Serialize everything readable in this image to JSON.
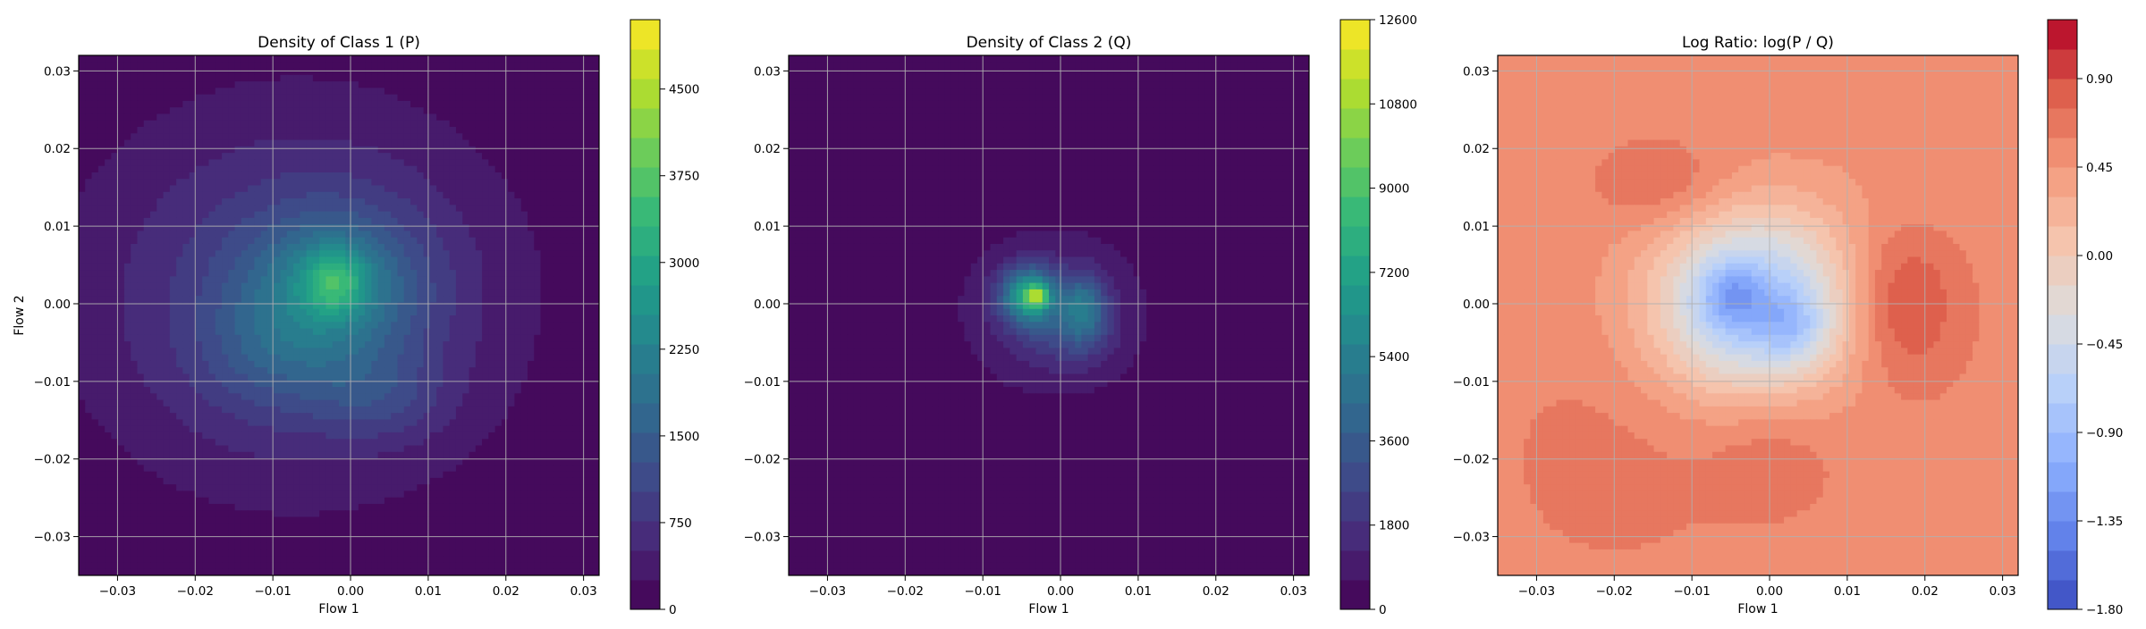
{
  "chart_data": [
    {
      "type": "heatmap",
      "title": "Density of Class 1 (P)",
      "xlabel": "Flow 1",
      "ylabel": "Flow 2",
      "xlim": [
        -0.035,
        0.032
      ],
      "ylim": [
        -0.035,
        0.032
      ],
      "xticks": [
        "−0.03",
        "−0.02",
        "−0.01",
        "0.00",
        "0.01",
        "0.02",
        "0.03"
      ],
      "yticks": [
        "−0.03",
        "−0.02",
        "−0.01",
        "0.00",
        "0.01",
        "0.02",
        "0.03"
      ],
      "grid": true,
      "colormap": "viridis",
      "colorbar": {
        "min": 0,
        "max": 5100,
        "ticks": [
          "0",
          "750",
          "1500",
          "2250",
          "3000",
          "3750",
          "4500"
        ]
      },
      "blobs": [
        {
          "x": -0.007,
          "y": 0.001,
          "sx": 0.019,
          "sy": 0.017,
          "w": 1000
        },
        {
          "x": -0.002,
          "y": 0.002,
          "sx": 0.008,
          "sy": 0.007,
          "w": 1300
        },
        {
          "x": 0.004,
          "y": -0.012,
          "sx": 0.006,
          "sy": 0.004,
          "w": 500
        },
        {
          "x": -0.01,
          "y": -0.006,
          "sx": 0.007,
          "sy": 0.006,
          "w": 500
        },
        {
          "x": -0.002,
          "y": 0.003,
          "sx": 0.003,
          "sy": 0.003,
          "w": 1300
        }
      ]
    },
    {
      "type": "heatmap",
      "title": "Density of Class 2 (Q)",
      "xlabel": "Flow 1",
      "ylabel": "",
      "xlim": [
        -0.035,
        0.032
      ],
      "ylim": [
        -0.035,
        0.032
      ],
      "xticks": [
        "−0.03",
        "−0.02",
        "−0.01",
        "0.00",
        "0.01",
        "0.02",
        "0.03"
      ],
      "yticks": [
        "−0.03",
        "−0.02",
        "−0.01",
        "0.00",
        "0.01",
        "0.02",
        "0.03"
      ],
      "grid": true,
      "colormap": "viridis",
      "colorbar": {
        "min": 0,
        "max": 12600,
        "ticks": [
          "0",
          "1800",
          "3600",
          "5400",
          "7200",
          "9000",
          "10800",
          "12600"
        ]
      },
      "blobs": [
        {
          "x": -0.001,
          "y": -0.001,
          "sx": 0.009,
          "sy": 0.008,
          "w": 1500
        },
        {
          "x": -0.004,
          "y": 0.001,
          "sx": 0.0025,
          "sy": 0.0025,
          "w": 6500
        },
        {
          "x": 0.003,
          "y": -0.0005,
          "sx": 0.002,
          "sy": 0.003,
          "w": 3500
        },
        {
          "x": 0.001,
          "y": -0.004,
          "sx": 0.004,
          "sy": 0.003,
          "w": 1200
        },
        {
          "x": -0.003,
          "y": 0.001,
          "sx": 0.0009,
          "sy": 0.0009,
          "w": 4500
        }
      ]
    },
    {
      "type": "heatmap",
      "title": "Log Ratio: log(P / Q)",
      "xlabel": "Flow 1",
      "ylabel": "",
      "xlim": [
        -0.035,
        0.032
      ],
      "ylim": [
        -0.035,
        0.032
      ],
      "xticks": [
        "−0.03",
        "−0.02",
        "−0.01",
        "0.00",
        "0.01",
        "0.02",
        "0.03"
      ],
      "yticks": [
        "−0.03",
        "−0.02",
        "−0.01",
        "0.00",
        "0.01",
        "0.02",
        "0.03"
      ],
      "grid": true,
      "colormap": "coolwarm",
      "colorbar": {
        "min": -1.8,
        "max": 1.2,
        "ticks": [
          "−1.80",
          "−1.35",
          "−0.90",
          "−0.45",
          "0.00",
          "0.45",
          "0.90"
        ]
      },
      "base": 0.55,
      "blobs": [
        {
          "x": -0.002,
          "y": 0.0,
          "sx": 0.009,
          "sy": 0.0085,
          "w": -1.4
        },
        {
          "x": -0.005,
          "y": 0.001,
          "sx": 0.003,
          "sy": 0.003,
          "w": -0.5
        },
        {
          "x": 0.003,
          "y": -0.003,
          "sx": 0.003,
          "sy": 0.003,
          "w": -0.4
        },
        {
          "x": 0.017,
          "y": 0.0,
          "sx": 0.005,
          "sy": 0.007,
          "w": 0.45
        },
        {
          "x": -0.013,
          "y": 0.015,
          "sx": 0.006,
          "sy": 0.004,
          "w": 0.25
        },
        {
          "x": 0.0,
          "y": -0.018,
          "sx": 0.006,
          "sy": 0.006,
          "w": 0.2
        },
        {
          "x": -0.02,
          "y": -0.02,
          "sx": 0.01,
          "sy": 0.01,
          "w": 0.1
        },
        {
          "x": 0.022,
          "y": 0.02,
          "sx": 0.008,
          "sy": 0.008,
          "w": -0.1
        }
      ]
    }
  ]
}
